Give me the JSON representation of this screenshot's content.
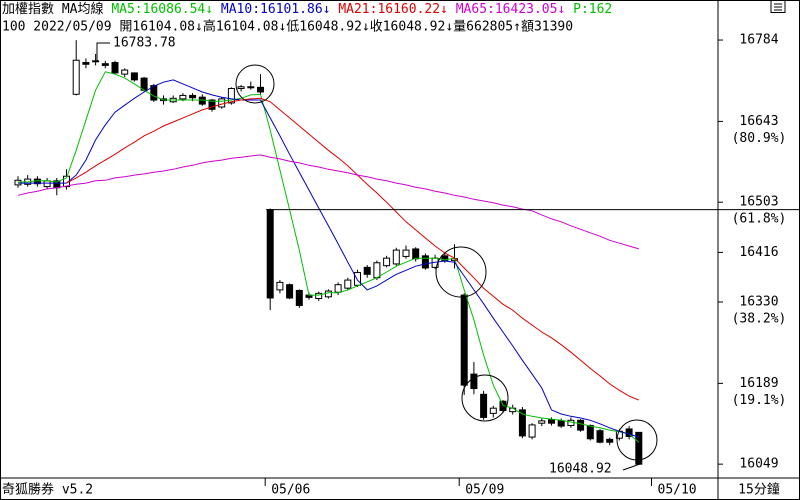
{
  "chart_data": {
    "type": "candlestick",
    "header": {
      "index_name": "加權指數",
      "indicator": "MA均線",
      "row2": "100 2022/05/09 開16104.08↓高16104.08↓低16048.92↓收16048.92↓量662805↑額31390"
    },
    "ma_lines": [
      {
        "label": "MA5:16086.54↓",
        "color": "#00c000",
        "values": [
          16538,
          16538,
          16540,
          16540,
          16538,
          16545,
          16593,
          16645,
          16697,
          16729,
          16725,
          16718,
          16708,
          16697,
          16687,
          16680,
          16680,
          16680,
          16680,
          16680,
          16678,
          16678,
          16680,
          16683,
          16689,
          16690,
          16628,
          16559,
          16490,
          16420,
          16342,
          16342,
          16346,
          16346,
          16351,
          16358,
          16365,
          16372,
          16382,
          16392,
          16399,
          16406,
          16406,
          16406,
          16403,
          16406,
          16351,
          16299,
          16238,
          16186,
          16151,
          16146,
          16136,
          16132,
          16129,
          16127,
          16125,
          16122,
          16119,
          16115,
          16112,
          16108,
          16105,
          16101,
          16087
        ]
      },
      {
        "label": "MA10:16101.86↓",
        "color": "#0000c8",
        "values": [
          16536,
          16536,
          16536,
          16536,
          16536,
          16536,
          16550,
          16576,
          16611,
          16637,
          16659,
          16671,
          16683,
          16694,
          16704,
          16711,
          16715,
          16708,
          16701,
          16694,
          16689,
          16685,
          16682,
          16680,
          16680,
          16680,
          16649,
          16618,
          16586,
          16555,
          16524,
          16493,
          16462,
          16431,
          16399,
          16368,
          16351,
          16358,
          16368,
          16378,
          16385,
          16392,
          16396,
          16399,
          16401,
          16399,
          16375,
          16351,
          16327,
          16302,
          16278,
          16254,
          16229,
          16205,
          16181,
          16143,
          16136,
          16132,
          16129,
          16125,
          16119,
          16112,
          16106,
          16101,
          16096
        ]
      },
      {
        "label": "MA21:16160.22↓",
        "color": "#e00000",
        "values": [
          null,
          null,
          null,
          null,
          null,
          16536,
          16545,
          16555,
          16566,
          16576,
          16586,
          16597,
          16607,
          16618,
          16626,
          16635,
          16642,
          16649,
          16656,
          16663,
          16668,
          16673,
          16677,
          16680,
          16682,
          16683,
          16677,
          16663,
          16649,
          16635,
          16621,
          16607,
          16593,
          16580,
          16566,
          16550,
          16534,
          16519,
          16503,
          16486,
          16469,
          16455,
          16441,
          16427,
          16415,
          16406,
          16389,
          16372,
          16354,
          16340,
          16326,
          16316,
          16302,
          16290,
          16278,
          16268,
          16256,
          16243,
          16229,
          16215,
          16202,
          16188,
          16177,
          16167,
          16160
        ]
      },
      {
        "label": "MA65:16423.05↓",
        "color": "#d000d0",
        "values": [
          16515,
          16519,
          16522,
          16526,
          16528,
          16531,
          16534,
          16536,
          16540,
          16541,
          16545,
          16547,
          16550,
          16552,
          16555,
          16557,
          16560,
          16564,
          16567,
          16571,
          16574,
          16576,
          16579,
          16581,
          16583,
          16585,
          16581,
          16578,
          16574,
          16571,
          16567,
          16564,
          16560,
          16557,
          16554,
          16550,
          16547,
          16543,
          16540,
          16536,
          16533,
          16529,
          16526,
          16522,
          16519,
          16515,
          16512,
          16508,
          16505,
          16502,
          16498,
          16495,
          16491,
          16488,
          16481,
          16474,
          16469,
          16462,
          16456,
          16450,
          16444,
          16437,
          16432,
          16427,
          16422
        ]
      }
    ],
    "extra_label": {
      "label": "P:162",
      "color": "#00c000"
    },
    "candles": [
      [
        16533,
        16548,
        16528,
        16541
      ],
      [
        16534,
        16550,
        16530,
        16543
      ],
      [
        16543,
        16548,
        16530,
        16535
      ],
      [
        16530,
        16545,
        16525,
        16540
      ],
      [
        16540,
        16545,
        16515,
        16528
      ],
      [
        16530,
        16560,
        16525,
        16548
      ],
      [
        16690,
        16783.78,
        16688,
        16749
      ],
      [
        16745,
        16752,
        16735,
        16742
      ],
      [
        16747,
        16760,
        16740,
        16748
      ],
      [
        16743,
        16748,
        16735,
        16740
      ],
      [
        16745,
        16748,
        16725,
        16727
      ],
      [
        16725,
        16735,
        16720,
        16732
      ],
      [
        16727,
        16728,
        16712,
        16715
      ],
      [
        16718,
        16720,
        16695,
        16697
      ],
      [
        16705,
        16708,
        16677,
        16680
      ],
      [
        16682,
        16688,
        16672,
        16679
      ],
      [
        16677,
        16688,
        16675,
        16683
      ],
      [
        16682,
        16692,
        16678,
        16688
      ],
      [
        16688,
        16692,
        16678,
        16684
      ],
      [
        16685,
        16690,
        16670,
        16673
      ],
      [
        16680,
        16682,
        16660,
        16664
      ],
      [
        16668,
        16685,
        16665,
        16682
      ],
      [
        16675,
        16702,
        16672,
        16700
      ],
      [
        16700,
        16706,
        16695,
        16703
      ],
      [
        16703,
        16712,
        16698,
        16702
      ],
      [
        16702,
        16725,
        16690,
        16694
      ],
      [
        16490,
        16492,
        16316,
        16337
      ],
      [
        16351,
        16368,
        16345,
        16364
      ],
      [
        16360,
        16362,
        16335,
        16337
      ],
      [
        16350,
        16352,
        16320,
        16324
      ],
      [
        16342,
        16346,
        16334,
        16338
      ],
      [
        16336,
        16348,
        16332,
        16345
      ],
      [
        16339,
        16352,
        16336,
        16349
      ],
      [
        16347,
        16364,
        16342,
        16360
      ],
      [
        16354,
        16372,
        16350,
        16368
      ],
      [
        16359,
        16386,
        16356,
        16381
      ],
      [
        16390,
        16394,
        16372,
        16378
      ],
      [
        16372,
        16402,
        16368,
        16398
      ],
      [
        16393,
        16410,
        16390,
        16406
      ],
      [
        16396,
        16424,
        16393,
        16420
      ],
      [
        16409,
        16428,
        16405,
        16420
      ],
      [
        16422,
        16425,
        16400,
        16405
      ],
      [
        16410,
        16414,
        16386,
        16389
      ],
      [
        16390,
        16412,
        16387,
        16406
      ],
      [
        16410,
        16415,
        16398,
        16402
      ],
      [
        16402,
        16430,
        16388,
        16405
      ],
      [
        16342,
        16345,
        16169,
        16186
      ],
      [
        16205,
        16226,
        16170,
        16180
      ],
      [
        16170,
        16176,
        16126,
        16130
      ],
      [
        16137,
        16150,
        16130,
        16146
      ],
      [
        16158,
        16160,
        16138,
        16142
      ],
      [
        16140,
        16152,
        16135,
        16146
      ],
      [
        16143,
        16148,
        16094,
        16098
      ],
      [
        16096,
        16120,
        16092,
        16117
      ],
      [
        16120,
        16128,
        16115,
        16124
      ],
      [
        16126,
        16130,
        16116,
        16120
      ],
      [
        16124,
        16128,
        16112,
        16115
      ],
      [
        16116,
        16130,
        16112,
        16125
      ],
      [
        16125,
        16127,
        16105,
        16108
      ],
      [
        16116,
        16118,
        16090,
        16093
      ],
      [
        16107,
        16110,
        16085,
        16087
      ],
      [
        16092,
        16095,
        16082,
        16087
      ],
      [
        16094,
        16110,
        16090,
        16106
      ],
      [
        16110,
        16115,
        16092,
        16097
      ],
      [
        16104.08,
        16104.08,
        16048.92,
        16048.92
      ]
    ],
    "categories": [
      null,
      null,
      null,
      null,
      null,
      null,
      null,
      null,
      null,
      null,
      null,
      null,
      null,
      null,
      null,
      null,
      null,
      null,
      null,
      null,
      null,
      null,
      null,
      null,
      null,
      null,
      "05/06",
      null,
      null,
      null,
      null,
      null,
      null,
      null,
      null,
      null,
      null,
      null,
      null,
      null,
      null,
      null,
      null,
      null,
      null,
      null,
      "05/09",
      null,
      null,
      null,
      null,
      null,
      null,
      null,
      null,
      null,
      null,
      null,
      null,
      null,
      null,
      null,
      null,
      null,
      null
    ],
    "next_label": "05/10",
    "ylim": [
      16025,
      16791
    ],
    "yticks": [
      16784,
      16643,
      16503,
      16416,
      16330,
      16189,
      16049
    ],
    "fib_labels": [
      null,
      "(80.9%)",
      "(61.8%)",
      null,
      "(38.2%)",
      "(19.1%)",
      null
    ],
    "reference_line": 16490,
    "annotations": {
      "high": "16783.78",
      "low": "16048.92"
    },
    "footer": {
      "software": "奇狐勝券 v5.2",
      "period": "15分鐘"
    }
  }
}
